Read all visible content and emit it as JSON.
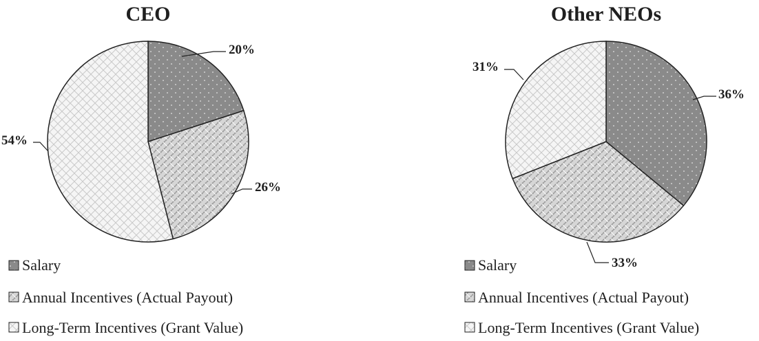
{
  "chart_data": [
    {
      "type": "pie",
      "title": "CEO",
      "categories": [
        "Salary",
        "Annual Incentives (Actual Payout)",
        "Long-Term Incentives (Grant Value)"
      ],
      "values": [
        20,
        26,
        54
      ],
      "labels": [
        "20%",
        "26%",
        "54%"
      ],
      "legend": [
        "Salary",
        "Annual Incentives (Actual Payout)",
        "Long-Term Incentives (Grant Value)"
      ],
      "legend_position": "bottom"
    },
    {
      "type": "pie",
      "title": "Other NEOs",
      "categories": [
        "Salary",
        "Annual Incentives (Actual Payout)",
        "Long-Term Incentives (Grant Value)"
      ],
      "values": [
        36,
        33,
        31
      ],
      "labels": [
        "36%",
        "33%",
        "31%"
      ],
      "legend": [
        "Salary",
        "Annual Incentives (Actual Payout)",
        "Long-Term Incentives (Grant Value)"
      ],
      "legend_position": "bottom"
    }
  ],
  "colors": {
    "salary_fill": "#8a8a8a",
    "annual_fill": "#d4d4d4",
    "longterm_fill": "#f4f4f4",
    "outline": "#222222"
  }
}
